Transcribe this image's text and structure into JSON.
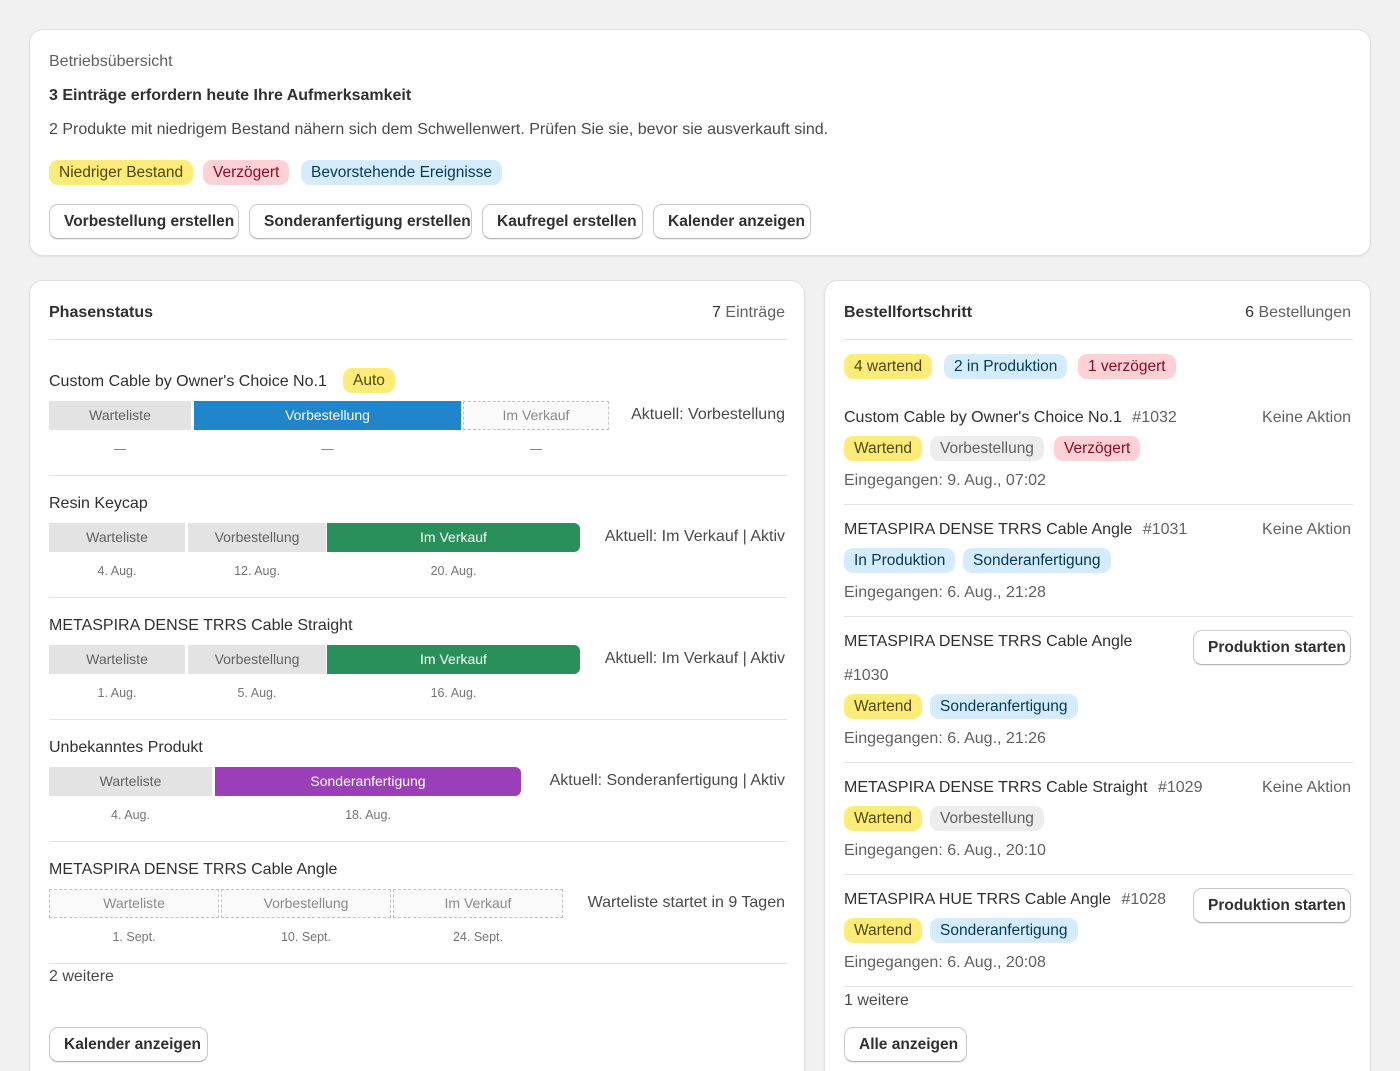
{
  "overview": {
    "label": "Betriebsübersicht",
    "headline": "3 Einträge erfordern heute Ihre Aufmerksamkeit",
    "description": "2 Produkte mit niedrigem Bestand nähern sich dem Schwellenwert. Prüfen Sie sie, bevor sie ausverkauft sind.",
    "badges": [
      "Niedriger Bestand",
      "Verzögert",
      "Bevorstehende Ereignisse"
    ],
    "actions": [
      "Vorbestellung erstellen",
      "Sonderanfertigung erstellen",
      "Kaufregel erstellen",
      "Kalender anzeigen"
    ]
  },
  "phases": {
    "title": "Phasenstatus",
    "count_num": "7",
    "count_label": "Einträge",
    "items": [
      {
        "name": "Custom Cable by Owner's Choice No.1",
        "badge": "Auto",
        "segments": [
          "Warteliste",
          "Vorbestellung",
          "Im Verkauf"
        ],
        "dates": [
          "—",
          "—",
          "—"
        ],
        "status": "Aktuell: Vorbestellung"
      },
      {
        "name": "Resin Keycap",
        "segments": [
          "Warteliste",
          "Vorbestellung",
          "Im Verkauf"
        ],
        "dates": [
          "4. Aug.",
          "12. Aug.",
          "20. Aug."
        ],
        "status": "Aktuell: Im Verkauf | Aktiv"
      },
      {
        "name": "METASPIRA DENSE TRRS Cable Straight",
        "segments": [
          "Warteliste",
          "Vorbestellung",
          "Im Verkauf"
        ],
        "dates": [
          "1. Aug.",
          "5. Aug.",
          "16. Aug."
        ],
        "status": "Aktuell: Im Verkauf | Aktiv"
      },
      {
        "name": "Unbekanntes Produkt",
        "segments": [
          "Warteliste",
          "Sonderanfertigung"
        ],
        "dates": [
          "4. Aug.",
          "18. Aug."
        ],
        "status": "Aktuell: Sonderanfertigung | Aktiv"
      },
      {
        "name": "METASPIRA DENSE TRRS Cable Angle",
        "segments": [
          "Warteliste",
          "Vorbestellung",
          "Im Verkauf"
        ],
        "dates": [
          "1. Sept.",
          "10. Sept.",
          "24. Sept."
        ],
        "status": "Warteliste startet in 9 Tagen"
      }
    ],
    "more": "2 weitere",
    "calendar_button": "Kalender anzeigen"
  },
  "orders": {
    "title": "Bestellfortschritt",
    "count_num": "6",
    "count_label": "Bestellungen",
    "summary": [
      "4 wartend",
      "2 in Produktion",
      "1 verzögert"
    ],
    "items": [
      {
        "name": "Custom Cable by Owner's Choice No.1",
        "number": "#1032",
        "action": "Keine Aktion",
        "badges": [
          "Wartend",
          "Vorbestellung",
          "Verzögert"
        ],
        "received": "Eingegangen: 9. Aug., 07:02"
      },
      {
        "name": "METASPIRA DENSE TRRS Cable Angle",
        "number": "#1031",
        "action": "Keine Aktion",
        "badges": [
          "In Produktion",
          "Sonderanfertigung"
        ],
        "received": "Eingegangen: 6. Aug., 21:28"
      },
      {
        "name": "METASPIRA DENSE TRRS Cable Angle",
        "number": "#1030",
        "action": "Produktion starten",
        "badges": [
          "Wartend",
          "Sonderanfertigung"
        ],
        "received": "Eingegangen: 6. Aug., 21:26"
      },
      {
        "name": "METASPIRA DENSE TRRS Cable Straight",
        "number": "#1029",
        "action": "Keine Aktion",
        "badges": [
          "Wartend",
          "Vorbestellung"
        ],
        "received": "Eingegangen: 6. Aug., 20:10"
      },
      {
        "name": "METASPIRA HUE TRRS Cable Angle",
        "number": "#1028",
        "action": "Produktion starten",
        "badges": [
          "Wartend",
          "Sonderanfertigung"
        ],
        "received": "Eingegangen: 6. Aug., 20:08"
      }
    ],
    "more": "1 weitere",
    "all_button": "Alle anzeigen"
  }
}
